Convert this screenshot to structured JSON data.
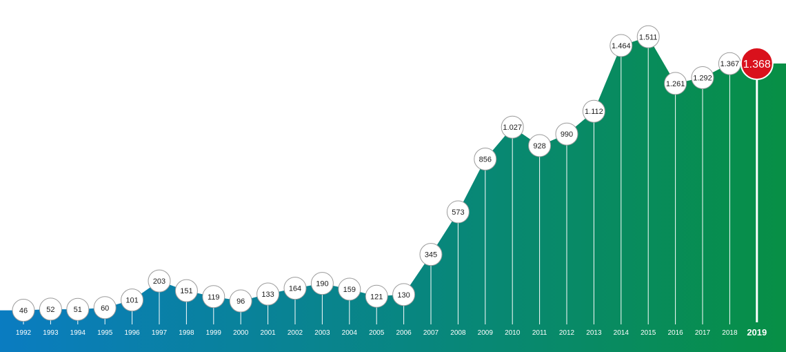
{
  "chart_data": {
    "type": "area",
    "title": "",
    "xlabel": "",
    "ylabel": "",
    "ylim": [
      0,
      1600
    ],
    "grid": false,
    "categories": [
      "1992",
      "1993",
      "1994",
      "1995",
      "1996",
      "1997",
      "1998",
      "1999",
      "2000",
      "2001",
      "2002",
      "2003",
      "2004",
      "2005",
      "2006",
      "2007",
      "2008",
      "2009",
      "2010",
      "2011",
      "2012",
      "2013",
      "2014",
      "2015",
      "2016",
      "2017",
      "2018",
      "2019"
    ],
    "values": [
      46,
      52,
      51,
      60,
      101,
      203,
      151,
      119,
      96,
      133,
      164,
      190,
      159,
      121,
      130,
      345,
      573,
      856,
      1027,
      928,
      990,
      1112,
      1464,
      1511,
      1261,
      1292,
      1367,
      1368
    ],
    "value_labels": [
      "46",
      "52",
      "51",
      "60",
      "101",
      "203",
      "151",
      "119",
      "96",
      "133",
      "164",
      "190",
      "159",
      "121",
      "130",
      "345",
      "573",
      "856",
      "1.027",
      "928",
      "990",
      "1.112",
      "1.464",
      "1.511",
      "1.261",
      "1.292",
      "1.367",
      "1.368"
    ],
    "highlight_index": 27,
    "colors": {
      "gradient_start": "#0a7cc1",
      "gradient_end": "#078f45",
      "highlight": "#d9111c",
      "marker_fill": "#ffffff",
      "marker_stroke": "#9a9a9a"
    }
  }
}
